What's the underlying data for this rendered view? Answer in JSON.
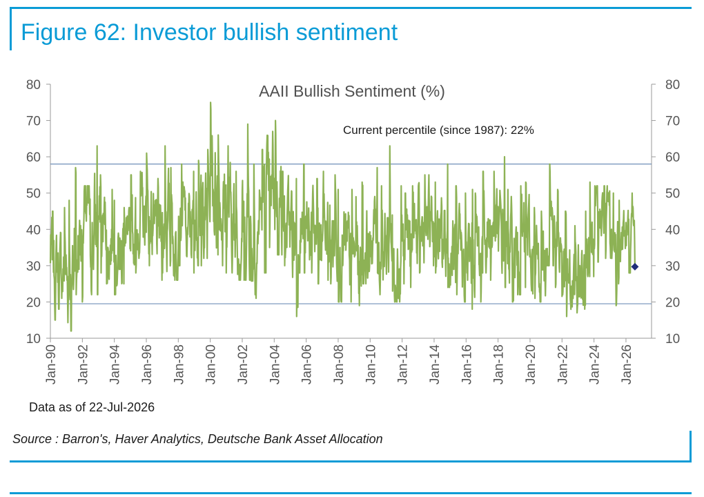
{
  "figure": {
    "title": "Figure 62: Investor bullish sentiment",
    "source": "Source : Barron's, Haver Analytics, Deutsche Bank Asset Allocation"
  },
  "colors": {
    "accent": "#0A9BD6",
    "series": "#8DB255",
    "reference_line": "#6F8FB8",
    "marker": "#1F2E7A",
    "axis": "#9a9a9a",
    "text": "#555555"
  },
  "chart_data": {
    "type": "line",
    "title": "AAII Bullish Sentiment (%)",
    "annotation": "Current percentile (since 1987): 22%",
    "footnote": "Data as of 22-Jul-2026",
    "ylim": [
      10,
      80
    ],
    "y_ticks": [
      10,
      20,
      30,
      40,
      50,
      60,
      70,
      80
    ],
    "y_axis_mirrored_right": true,
    "xlim": [
      1990.0,
      2027.6
    ],
    "x_ticks": [
      {
        "label": "Jan-90",
        "x": 1990
      },
      {
        "label": "Jan-92",
        "x": 1992
      },
      {
        "label": "Jan-94",
        "x": 1994
      },
      {
        "label": "Jan-96",
        "x": 1996
      },
      {
        "label": "Jan-98",
        "x": 1998
      },
      {
        "label": "Jan-00",
        "x": 2000
      },
      {
        "label": "Jan-02",
        "x": 2002
      },
      {
        "label": "Jan-04",
        "x": 2004
      },
      {
        "label": "Jan-06",
        "x": 2006
      },
      {
        "label": "Jan-08",
        "x": 2008
      },
      {
        "label": "Jan-10",
        "x": 2010
      },
      {
        "label": "Jan-12",
        "x": 2012
      },
      {
        "label": "Jan-14",
        "x": 2014
      },
      {
        "label": "Jan-16",
        "x": 2016
      },
      {
        "label": "Jan-18",
        "x": 2018
      },
      {
        "label": "Jan-20",
        "x": 2020
      },
      {
        "label": "Jan-22",
        "x": 2022
      },
      {
        "label": "Jan-24",
        "x": 2024
      },
      {
        "label": "Jan-26",
        "x": 2026
      }
    ],
    "grid": false,
    "reference_lines": [
      58,
      19.5
    ],
    "latest_point": {
      "x": 2026.56,
      "y": 29.7
    },
    "series": [
      {
        "x": [
          1990.0,
          1990.5,
          1991.0,
          1991.5,
          1992.0,
          1992.5,
          1993.0,
          1993.5,
          1994.0,
          1994.5,
          1995.0,
          1995.5,
          1996.0,
          1996.5,
          1997.0,
          1997.5,
          1998.0,
          1998.5,
          1999.0,
          1999.5,
          2000.0,
          2000.5,
          2001.0,
          2001.5,
          2002.0,
          2002.5,
          2003.0,
          2003.5,
          2004.0,
          2004.5,
          2005.0,
          2005.5,
          2006.0,
          2006.5,
          2007.0,
          2007.5,
          2008.0,
          2008.5,
          2009.0,
          2009.5,
          2010.0,
          2010.5,
          2011.0,
          2011.5,
          2012.0,
          2012.5,
          2013.0,
          2013.5,
          2014.0,
          2014.5,
          2015.0,
          2015.5,
          2016.0,
          2016.5,
          2017.0,
          2017.5,
          2018.0,
          2018.5,
          2019.0,
          2019.5,
          2020.0,
          2020.5,
          2021.0,
          2021.5,
          2022.0,
          2022.5,
          2023.0,
          2023.5,
          2024.0,
          2024.5,
          2025.0,
          2025.5,
          2026.0,
          2026.56
        ],
        "values": [
          30,
          28,
          25,
          38,
          44,
          40,
          42,
          36,
          33,
          35,
          40,
          42,
          44,
          39,
          41,
          37,
          42,
          40,
          44,
          46,
          52,
          48,
          43,
          39,
          40,
          36,
          45,
          50,
          48,
          42,
          38,
          40,
          41,
          36,
          40,
          38,
          33,
          32,
          31,
          36,
          40,
          35,
          39,
          32,
          36,
          37,
          40,
          42,
          38,
          37,
          33,
          32,
          31,
          33,
          39,
          40,
          38,
          33,
          34,
          36,
          32,
          30,
          42,
          36,
          27,
          24,
          27,
          36,
          43,
          44,
          33,
          38,
          37,
          29.7
        ],
        "range_low": [
          15,
          18,
          12,
          22,
          20,
          22,
          28,
          25,
          22,
          25,
          28,
          32,
          30,
          26,
          28,
          26,
          30,
          28,
          30,
          32,
          33,
          30,
          28,
          26,
          26,
          21,
          28,
          35,
          33,
          30,
          16,
          28,
          28,
          25,
          26,
          25,
          20,
          20,
          19,
          25,
          28,
          22,
          23,
          20,
          25,
          24,
          28,
          30,
          28,
          24,
          22,
          20,
          18,
          20,
          28,
          26,
          24,
          20,
          22,
          24,
          21,
          20,
          30,
          24,
          16,
          17,
          18,
          27,
          31,
          32,
          19,
          25,
          28,
          29.7
        ],
        "range_high": [
          45,
          46,
          48,
          57,
          52,
          63,
          55,
          51,
          48,
          46,
          55,
          56,
          61,
          58,
          63,
          57,
          58,
          56,
          59,
          62,
          75,
          66,
          63,
          56,
          69,
          58,
          62,
          67,
          70,
          56,
          54,
          58,
          58,
          54,
          56,
          55,
          51,
          51,
          49,
          53,
          57,
          52,
          63,
          52,
          50,
          52,
          55,
          57,
          53,
          58,
          52,
          50,
          51,
          50,
          56,
          56,
          60,
          51,
          52,
          53,
          46,
          45,
          58,
          51,
          45,
          41,
          45,
          53,
          52,
          52,
          50,
          48,
          50,
          29.7
        ]
      }
    ]
  }
}
